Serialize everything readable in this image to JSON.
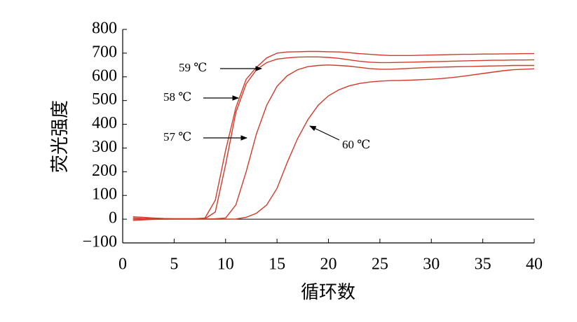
{
  "chart_data": {
    "type": "line",
    "x_label": "循环数",
    "y_label": "荧光强度",
    "x": [
      1,
      2,
      3,
      4,
      5,
      6,
      7,
      8,
      9,
      10,
      11,
      12,
      13,
      14,
      15,
      16,
      17,
      18,
      19,
      20,
      21,
      22,
      23,
      24,
      25,
      26,
      27,
      28,
      29,
      30,
      31,
      32,
      33,
      34,
      35,
      36,
      37,
      38,
      39,
      40
    ],
    "series": [
      {
        "name": "59 ℃",
        "color": "#d23a2a",
        "values": [
          5,
          3,
          2,
          2,
          2,
          2,
          2,
          5,
          80,
          290,
          470,
          590,
          640,
          680,
          700,
          705,
          706,
          707,
          707,
          706,
          705,
          702,
          698,
          695,
          692,
          690,
          690,
          690,
          691,
          692,
          693,
          694,
          695,
          695,
          696,
          696,
          697,
          697,
          698,
          698
        ]
      },
      {
        "name": "58 ℃",
        "color": "#d23a2a",
        "values": [
          10,
          8,
          5,
          3,
          2,
          2,
          2,
          2,
          30,
          230,
          450,
          570,
          630,
          660,
          675,
          680,
          683,
          684,
          684,
          682,
          678,
          672,
          666,
          662,
          660,
          660,
          661,
          662,
          663,
          664,
          665,
          666,
          667,
          668,
          669,
          670,
          670,
          671,
          671,
          672
        ]
      },
      {
        "name": "57 ℃",
        "color": "#d23a2a",
        "values": [
          -5,
          -3,
          -1,
          0,
          1,
          1,
          1,
          1,
          2,
          5,
          60,
          200,
          360,
          480,
          560,
          605,
          630,
          643,
          648,
          650,
          648,
          645,
          640,
          635,
          632,
          632,
          634,
          636,
          638,
          640,
          641,
          642,
          643,
          644,
          645,
          646,
          647,
          648,
          648,
          648
        ]
      },
      {
        "name": "60 ℃",
        "color": "#d23a2a",
        "values": [
          0,
          0,
          0,
          0,
          0,
          0,
          0,
          0,
          0,
          0,
          1,
          8,
          25,
          60,
          130,
          240,
          340,
          420,
          480,
          520,
          545,
          562,
          572,
          578,
          582,
          584,
          585,
          586,
          588,
          590,
          593,
          597,
          602,
          608,
          614,
          620,
          626,
          630,
          632,
          634
        ]
      }
    ],
    "hline": 0,
    "xlim": [
      0,
      40
    ],
    "xticks": [
      0,
      5,
      10,
      15,
      20,
      25,
      30,
      35,
      40
    ],
    "ylim": [
      -100,
      800
    ],
    "yticks": [
      {
        "value": -100,
        "label": "−100"
      },
      0,
      100,
      200,
      300,
      400,
      500,
      600,
      700,
      800
    ]
  }
}
